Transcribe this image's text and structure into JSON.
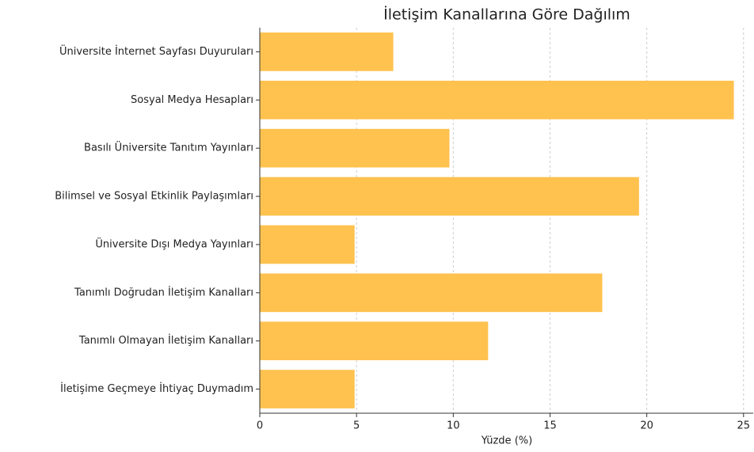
{
  "chart_data": {
    "type": "barh",
    "title": "İletişim Kanallarına Göre Dağılım",
    "x_label": "Yüzde (%)",
    "categories": [
      "Üniversite İnternet Sayfası Duyuruları",
      "Sosyal Medya Hesapları",
      "Basılı Üniversite Tanıtım Yayınları",
      "Bilimsel ve Sosyal Etkinlik Paylaşımları",
      "Üniversite Dışı Medya Yayınları",
      "Tanımlı Doğrudan İletişim Kanalları",
      "Tanımlı Olmayan İletişim Kanalları",
      "İletişime Geçmeye İhtiyaç Duymadım"
    ],
    "values": [
      6.9,
      24.5,
      9.8,
      19.6,
      4.9,
      17.7,
      11.8,
      4.9
    ],
    "color": "#ffc24f",
    "xlim": [
      0,
      25.5
    ],
    "xticks": [
      0,
      5,
      10,
      15,
      20,
      25
    ],
    "grid": true
  }
}
